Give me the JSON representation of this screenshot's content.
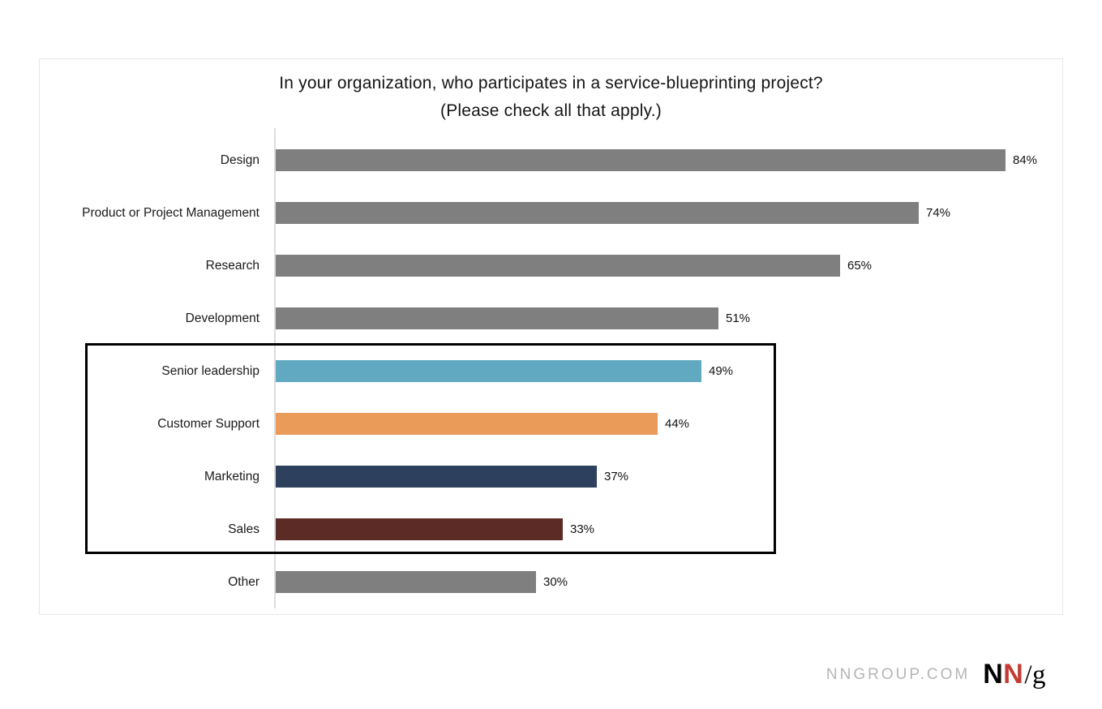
{
  "title": {
    "line1": "In your organization, who participates in a service-blueprinting project?",
    "line2": "(Please check all that apply.)"
  },
  "chart_data": {
    "type": "bar",
    "orientation": "horizontal",
    "title": "In your organization, who participates in a service-blueprinting project? (Please check all that apply.)",
    "categories": [
      "Design",
      "Product or Project Management",
      "Research",
      "Development",
      "Senior leadership",
      "Customer Support",
      "Marketing",
      "Sales",
      "Other"
    ],
    "values": [
      84,
      74,
      65,
      51,
      49,
      44,
      37,
      33,
      30
    ],
    "value_labels": [
      "84%",
      "74%",
      "65%",
      "51%",
      "49%",
      "44%",
      "37%",
      "33%",
      "30%"
    ],
    "bar_colors": [
      "#7f7f7f",
      "#7f7f7f",
      "#7f7f7f",
      "#7f7f7f",
      "#61a9c1",
      "#ea9a59",
      "#2d415e",
      "#5c2b25",
      "#7f7f7f"
    ],
    "xlim": [
      0,
      100
    ],
    "grid": false,
    "legend": false,
    "highlighted_categories": [
      "Senior leadership",
      "Customer Support",
      "Marketing",
      "Sales"
    ]
  },
  "footer": {
    "website": "NNGROUP.COM",
    "logo_n1": "N",
    "logo_n2": "N",
    "logo_slash_g": "/g"
  },
  "colors": {
    "default_bar": "#7f7f7f",
    "teal_bar": "#61a9c1",
    "orange_bar": "#ea9a59",
    "navy_bar": "#2d415e",
    "maroon_bar": "#5c2b25",
    "highlight_border": "#000000",
    "logo_red": "#c33b32"
  }
}
